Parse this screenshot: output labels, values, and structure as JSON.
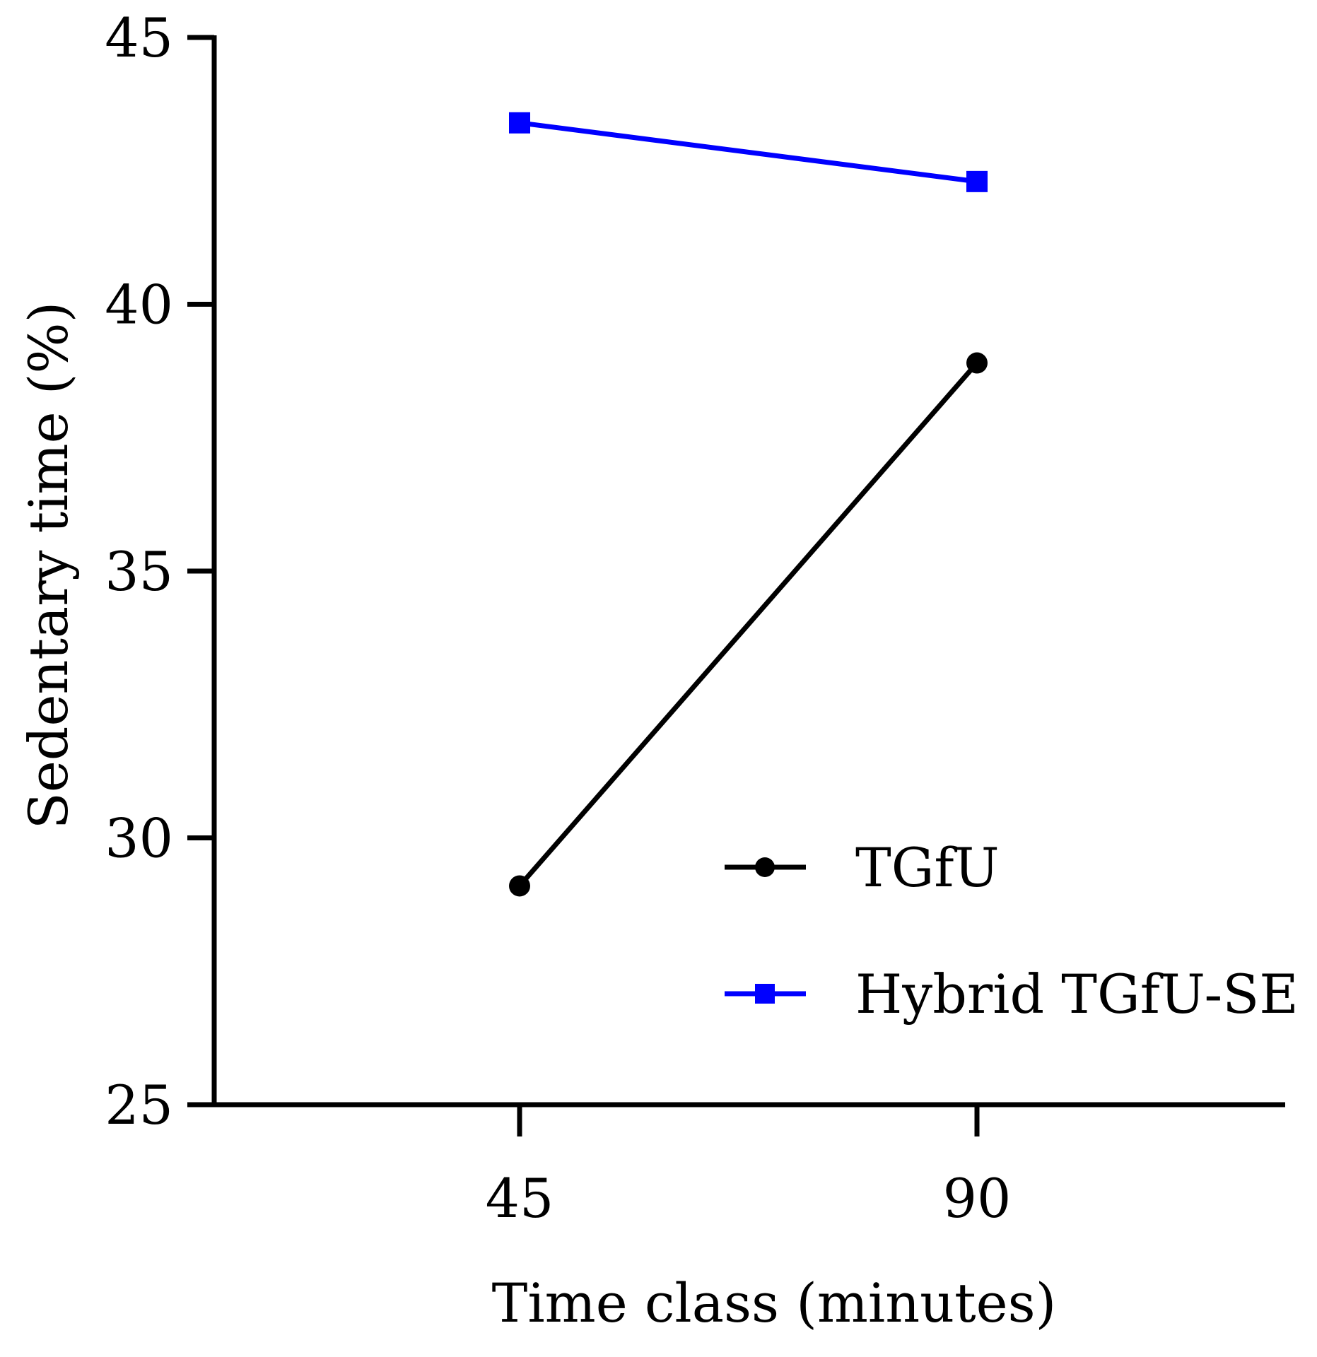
{
  "chart_data": {
    "type": "line",
    "xlabel": "Time class (minutes)",
    "ylabel": "Sedentary time  (%)",
    "x": [
      45,
      90
    ],
    "categories": [
      "45",
      "90"
    ],
    "ylim": [
      25,
      45
    ],
    "yticks": [
      "25",
      "30",
      "35",
      "40",
      "45"
    ],
    "grid": false,
    "legend_position": "bottom-right",
    "series": [
      {
        "name": "TGfU",
        "values": [
          29.1,
          38.9
        ],
        "color": "#000000",
        "marker": "circle"
      },
      {
        "name": "Hybrid TGfU-SE",
        "values": [
          43.4,
          42.3
        ],
        "color": "#0000FF",
        "marker": "square"
      }
    ]
  }
}
